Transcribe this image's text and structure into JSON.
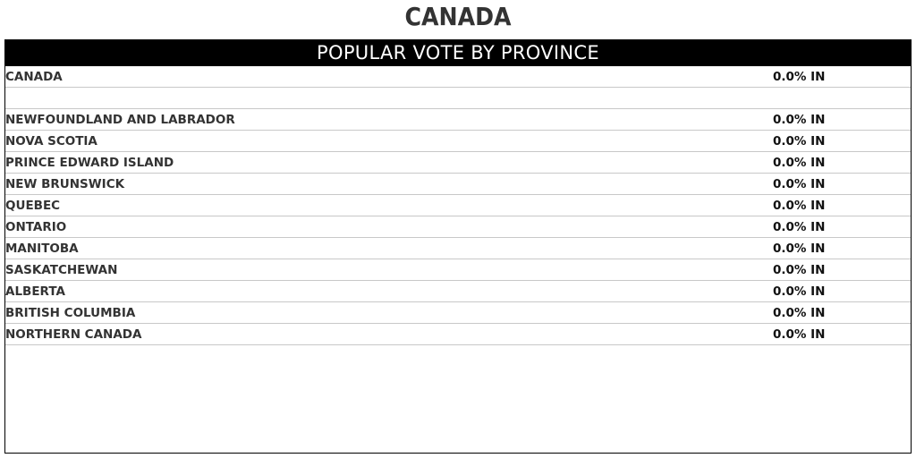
{
  "page": {
    "title": "CANADA"
  },
  "panel": {
    "header": "POPULAR VOTE BY PROVINCE"
  },
  "rows": [
    {
      "name": "CANADA",
      "reporting": "0.0% IN"
    },
    {
      "name": "",
      "reporting": ""
    },
    {
      "name": "NEWFOUNDLAND AND LABRADOR",
      "reporting": "0.0% IN"
    },
    {
      "name": "NOVA SCOTIA",
      "reporting": "0.0% IN"
    },
    {
      "name": "PRINCE EDWARD ISLAND",
      "reporting": "0.0% IN"
    },
    {
      "name": "NEW BRUNSWICK",
      "reporting": "0.0% IN"
    },
    {
      "name": "QUEBEC",
      "reporting": "0.0% IN"
    },
    {
      "name": "ONTARIO",
      "reporting": "0.0% IN"
    },
    {
      "name": "MANITOBA",
      "reporting": "0.0% IN"
    },
    {
      "name": "SASKATCHEWAN",
      "reporting": "0.0% IN"
    },
    {
      "name": "ALBERTA",
      "reporting": "0.0% IN"
    },
    {
      "name": "BRITISH COLUMBIA",
      "reporting": "0.0% IN"
    },
    {
      "name": "NORTHERN CANADA",
      "reporting": "0.0% IN"
    }
  ]
}
